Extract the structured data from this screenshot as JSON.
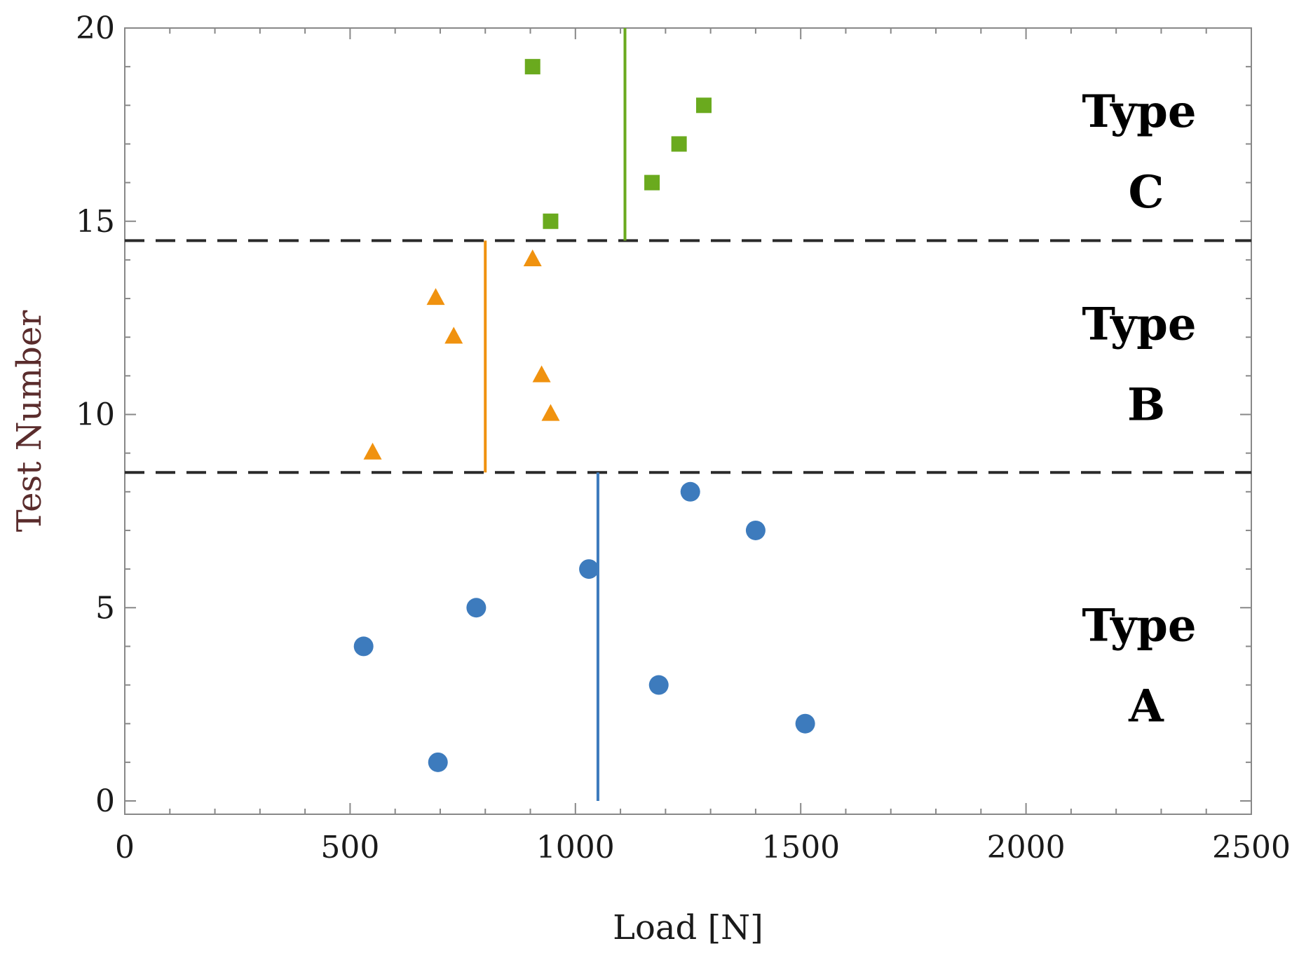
{
  "chart_data": {
    "type": "scatter",
    "title": "",
    "xlabel": "Load [N]",
    "ylabel": "Test Number",
    "xlim": [
      0,
      2500
    ],
    "ylim": [
      0,
      20
    ],
    "x_ticks": [
      0,
      500,
      1000,
      1500,
      2000,
      2500
    ],
    "y_ticks": [
      0,
      5,
      10,
      15,
      20
    ],
    "x_tick_labels": [
      "0",
      "500",
      "1000",
      "1500",
      "2000",
      "2500"
    ],
    "y_tick_labels": [
      "0",
      "5",
      "10",
      "15",
      "20"
    ],
    "grid": false,
    "series": [
      {
        "name": "Type A",
        "marker": "circle",
        "color": "#3d7bbd",
        "points": [
          {
            "x": 695,
            "y": 1
          },
          {
            "x": 1510,
            "y": 2
          },
          {
            "x": 1185,
            "y": 3
          },
          {
            "x": 530,
            "y": 4
          },
          {
            "x": 780,
            "y": 5
          },
          {
            "x": 1030,
            "y": 6
          },
          {
            "x": 1400,
            "y": 7
          },
          {
            "x": 1255,
            "y": 8
          }
        ],
        "mean_line": {
          "x": 1050,
          "y_range": [
            0,
            8.5
          ]
        }
      },
      {
        "name": "Type B",
        "marker": "triangle",
        "color": "#f0920f",
        "points": [
          {
            "x": 550,
            "y": 9
          },
          {
            "x": 945,
            "y": 10
          },
          {
            "x": 925,
            "y": 11
          },
          {
            "x": 730,
            "y": 12
          },
          {
            "x": 690,
            "y": 13
          },
          {
            "x": 905,
            "y": 14
          }
        ],
        "mean_line": {
          "x": 800,
          "y_range": [
            8.5,
            14.5
          ]
        }
      },
      {
        "name": "Type C",
        "marker": "square",
        "color": "#6aaa1e",
        "points": [
          {
            "x": 945,
            "y": 15
          },
          {
            "x": 1170,
            "y": 16
          },
          {
            "x": 1230,
            "y": 17
          },
          {
            "x": 1285,
            "y": 18
          },
          {
            "x": 905,
            "y": 19
          }
        ],
        "mean_line": {
          "x": 1110,
          "y_range": [
            14.5,
            20
          ]
        }
      }
    ],
    "dividers": [
      {
        "y": 8.5,
        "style": "dashed",
        "color": "#2a2a2a"
      },
      {
        "y": 14.5,
        "style": "dashed",
        "color": "#2a2a2a"
      }
    ],
    "annotations": [
      {
        "line1": "Type",
        "line2": "A",
        "y_center": 3.6
      },
      {
        "line1": "Type",
        "line2": "B",
        "y_center": 11.4
      },
      {
        "line1": "Type",
        "line2": "C",
        "y_center": 16.9
      }
    ],
    "colors": {
      "axis": "#888888",
      "xlabel_color": "#1a1a1a",
      "ylabel_color": "#5a2c2c"
    }
  }
}
